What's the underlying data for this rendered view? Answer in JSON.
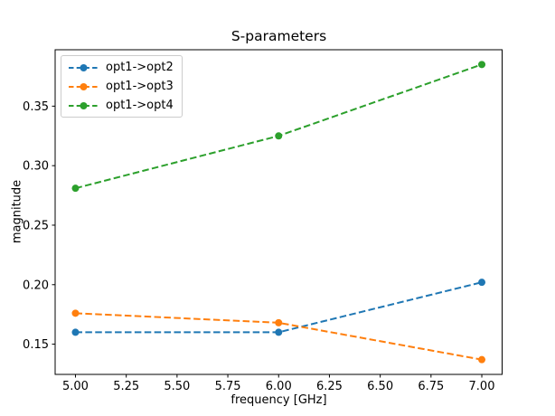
{
  "chart_data": {
    "type": "line",
    "title": "S-parameters",
    "xlabel": "frequency [GHz]",
    "ylabel": "magnitude",
    "x": [
      5.0,
      6.0,
      7.0
    ],
    "series": [
      {
        "name": "opt1->opt2",
        "color": "#1f77b4",
        "values": [
          0.16,
          0.16,
          0.202
        ],
        "linestyle": "dashed",
        "marker": "circle"
      },
      {
        "name": "opt1->opt3",
        "color": "#ff7f0e",
        "values": [
          0.176,
          0.168,
          0.137
        ],
        "linestyle": "dashed",
        "marker": "circle"
      },
      {
        "name": "opt1->opt4",
        "color": "#2ca02c",
        "values": [
          0.281,
          0.325,
          0.385
        ],
        "linestyle": "dashed",
        "marker": "circle"
      }
    ],
    "xlim": [
      4.9,
      7.1
    ],
    "ylim": [
      0.1246,
      0.3974
    ],
    "xticks": {
      "values": [
        5.0,
        5.25,
        5.5,
        5.75,
        6.0,
        6.25,
        6.5,
        6.75,
        7.0
      ],
      "labels": [
        "5.00",
        "5.25",
        "5.50",
        "5.75",
        "6.00",
        "6.25",
        "6.50",
        "6.75",
        "7.00"
      ]
    },
    "yticks": {
      "values": [
        0.15,
        0.2,
        0.25,
        0.3,
        0.35
      ],
      "labels": [
        "0.15",
        "0.20",
        "0.25",
        "0.30",
        "0.35"
      ]
    },
    "legend": {
      "position": "upper left"
    },
    "grid": false
  },
  "colors": {
    "background": "#ffffff",
    "spine": "#000000",
    "text": "#000000",
    "legend_border": "#cccccc"
  }
}
